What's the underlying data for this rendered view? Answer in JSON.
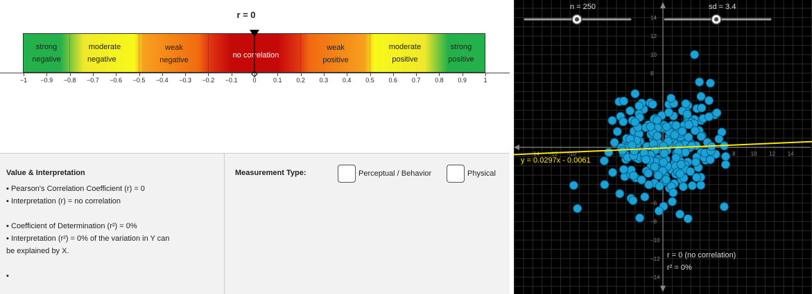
{
  "heading": "r = 0",
  "bar_labels": [
    {
      "line1": "strong",
      "line2": "negative"
    },
    {
      "line1": "moderate",
      "line2": "negative"
    },
    {
      "line1": "weak",
      "line2": "negative"
    },
    {
      "line1": "no correlation",
      "line2": ""
    },
    {
      "line1": "weak",
      "line2": "positive"
    },
    {
      "line1": "moderate",
      "line2": "positive"
    },
    {
      "line1": "strong",
      "line2": "positive"
    }
  ],
  "axis_ticks": [
    "−1",
    "−0.9",
    "−0.8",
    "−0.7",
    "−0.6",
    "−0.5",
    "−0.4",
    "−0.3",
    "−0.2",
    "−0.1",
    "0",
    "0.1",
    "0.2",
    "0.3",
    "0.4",
    "0.5",
    "0.6",
    "0.7",
    "0.8",
    "0.9",
    "1"
  ],
  "value_section": {
    "title": "Value & Interpretation",
    "lines": [
      "▪ Pearson's Correlation Coefficient (r) = 0",
      "▪ Interpretation (r) = no correlation",
      "▪ Coefficient of Determination (r²) = 0%",
      "▪ Interpretation (r²) = 0% of the variation in Y can",
      "be explained by X.",
      "▪"
    ]
  },
  "measurement": {
    "label": "Measurement Type:",
    "options": [
      "Perceptual / Behavior",
      "Physical"
    ]
  },
  "sliders": [
    {
      "label": "n = 250",
      "value": 250
    },
    {
      "label": "sd = 3.4",
      "value": 3.4
    }
  ],
  "plot": {
    "equation": "y = 0.0297x - 0.0061",
    "r_text": "r = 0 (no correlation)",
    "r2_text": "r² = 0%",
    "x_tick_labels": [
      "−14",
      "−12",
      "−10",
      "8",
      "10",
      "12",
      "14"
    ],
    "y_tick_labels": [
      "14",
      "12",
      "10",
      "8",
      "−6",
      "−8",
      "−10",
      "−12",
      "−14"
    ],
    "colors": {
      "point": "#1aa3d9",
      "line": "#ffe600",
      "bg": "#000000"
    }
  }
}
